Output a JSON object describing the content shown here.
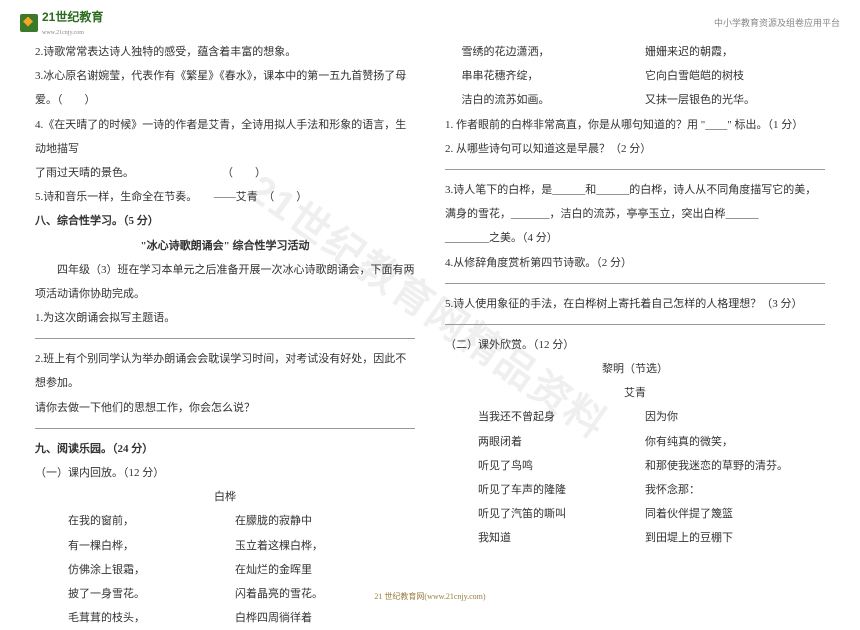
{
  "header": {
    "logo_text": "21世纪教育",
    "logo_sub": "www.21cnjy.com",
    "right": "中小学教育资源及组卷应用平台"
  },
  "watermark": "21世纪教育网精品资料",
  "left_col": {
    "q2": "2.诗歌常常表达诗人独特的感受，蕴含着丰富的想象。",
    "q3": "3.冰心原名谢婉莹，代表作有《繁星》《春水》，课本中的第一五九首赞扬了母爱。（　　）",
    "q4a": "4.《在天晴了的时候》一诗的作者是艾青，全诗用拟人手法和形象的语言，生动地描写",
    "q4b": "了雨过天晴的景色。　　　　　　　　　（　　）",
    "q5": "5.诗和音乐一样，生命全在节奏。　　——艾青　（　　）",
    "sec8_title": "八、综合性学习。（5 分）",
    "activity_title": "\"冰心诗歌朗诵会\" 综合性学习活动",
    "activity_intro": "　　四年级（3）班在学习本单元之后准备开展一次冰心诗歌朗诵会，下面有两项活动请你协助完成。",
    "act1": "1.为这次朗诵会拟写主题语。",
    "act2a": "2.班上有个别同学认为举办朗诵会会耽误学习时间，对考试没有好处，因此不想参加。",
    "act2b": "请你去做一下他们的思想工作，你会怎么说？",
    "sec9_title": "九、阅读乐园。（24 分）",
    "read1_title": "（一）课内回放。（12 分）",
    "poem1_title": "白桦",
    "poem1": {
      "l1a": "在我的窗前，",
      "l1b": "在朦胧的寂静中",
      "l2a": "有一棵白桦，",
      "l2b": "玉立着这棵白桦，",
      "l3a": "仿佛涂上银霜，",
      "l3b": "在灿烂的金晖里",
      "l4a": "披了一身雪花。",
      "l4b": "闪着晶亮的雪花。",
      "l5a": "毛茸茸的枝头，",
      "l5b": "白桦四周徜徉着"
    }
  },
  "right_col": {
    "poem1_cont": {
      "l1a": "雪绣的花边潇洒，",
      "l1b": "姗姗来迟的朝霞，",
      "l2a": "串串花穗齐绽，",
      "l2b": "它向白雪皑皑的树枝",
      "l3a": "洁白的流苏如画。",
      "l3b": "又抹一层银色的光华。"
    },
    "q1": "1. 作者眼前的白桦非常高直，你是从哪句知道的？用 \"____\" 标出。（1 分）",
    "q2": "2. 从哪些诗句可以知道这是早晨？（2 分）",
    "q3a": "3.诗人笔下的白桦，是______和______的白桦，诗人从不同角度描写它的美，",
    "q3b": "满身的雪花，_______，洁白的流苏，亭亭玉立，突出白桦______",
    "q3c": "________之美。（4 分）",
    "q4": "4.从修辞角度赏析第四节诗歌。（2 分）",
    "q5": "5.诗人使用象征的手法，在白桦树上寄托着自己怎样的人格理想？（3 分）",
    "read2_title": "（二）课外欣赏。（12 分）",
    "poem2_title": "黎明（节选）",
    "poem2_author": "艾青",
    "poem2": {
      "l1a": "当我还不曾起身",
      "l1b": "因为你",
      "l2a": "两眼闭着",
      "l2b": "你有纯真的微笑，",
      "l3a": "听见了鸟鸣",
      "l3b": "和那使我迷恋的草野的清芬。",
      "l4a": "听见了车声的隆隆",
      "l4b": "我怀念那：",
      "l5a": "听见了汽笛的嘶叫",
      "l5b": "同着伙伴提了篾篮",
      "l6a": "我知道",
      "l6b": "到田堤上的豆棚下"
    }
  },
  "footer": "21 世纪教育网(www.21cnjy.com)"
}
